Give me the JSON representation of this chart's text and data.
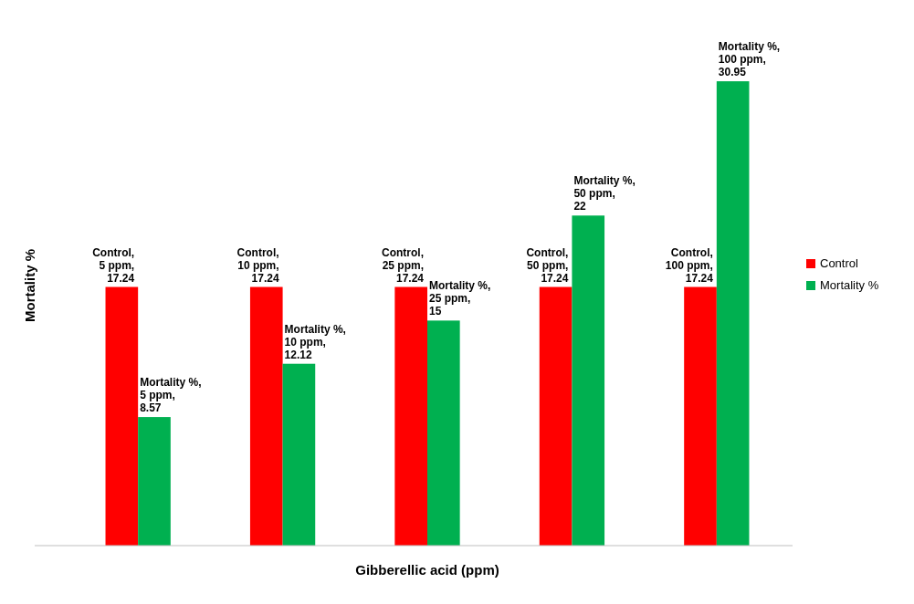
{
  "chart_data": {
    "type": "bar",
    "xlabel": "Gibberellic acid (ppm)",
    "ylabel": "Mortality %",
    "categories": [
      null,
      null,
      null,
      null,
      null
    ],
    "series": [
      {
        "name": "Control",
        "color": "#ff0000",
        "values": [
          17.24,
          17.24,
          17.24,
          17.24,
          17.24
        ],
        "value_labels": [
          "Control, 5 ppm, 17.24",
          "Control, 10 ppm, 17.24",
          "Control, 25 ppm, 17.24",
          "Control, 50 ppm, 17.24",
          "Control, 100 ppm, 17.24"
        ]
      },
      {
        "name": "Mortality %",
        "color": "#00b050",
        "values": [
          8.57,
          12.12,
          15,
          22,
          30.95
        ],
        "value_labels": [
          "Mortality %, 5 ppm, 8.57",
          "Mortality %, 10 ppm, 12.12",
          "Mortality %, 25 ppm, 15",
          "Mortality %, 50 ppm, 22",
          "Mortality %, 100 ppm, 30.95"
        ]
      }
    ],
    "legend": "right"
  }
}
